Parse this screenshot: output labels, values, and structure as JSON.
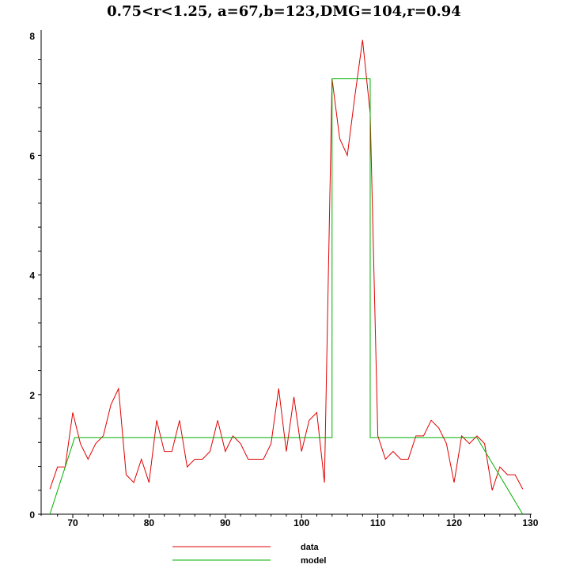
{
  "chart_data": {
    "type": "line",
    "title": "0.75<r<1.25, a=67,b=123,DMG=104,r=0.94",
    "xlabel": "",
    "ylabel": "",
    "xlim": [
      66,
      130
    ],
    "ylim": [
      0,
      8.1
    ],
    "xticks": [
      70,
      80,
      90,
      100,
      110,
      120,
      130
    ],
    "yticks": [
      0,
      2,
      4,
      6,
      8
    ],
    "grid": false,
    "legend_position": "bottom",
    "series": [
      {
        "name": "data",
        "color": "#e00000",
        "x": [
          67,
          68,
          69,
          70,
          71,
          72,
          73,
          74,
          75,
          76,
          77,
          78,
          79,
          80,
          81,
          82,
          83,
          84,
          85,
          86,
          87,
          88,
          89,
          90,
          91,
          92,
          93,
          94,
          95,
          96,
          97,
          98,
          99,
          100,
          101,
          102,
          103,
          104,
          105,
          106,
          107,
          108,
          109,
          110,
          111,
          112,
          113,
          114,
          115,
          116,
          117,
          118,
          119,
          120,
          121,
          122,
          123,
          124,
          125,
          126,
          127,
          128,
          129
        ],
        "y": [
          0.42,
          0.79,
          0.79,
          1.7,
          1.18,
          0.92,
          1.18,
          1.31,
          1.83,
          2.1,
          0.66,
          0.53,
          0.92,
          0.53,
          1.57,
          1.05,
          1.05,
          1.57,
          0.79,
          0.92,
          0.92,
          1.05,
          1.57,
          1.05,
          1.31,
          1.18,
          0.92,
          0.92,
          0.92,
          1.18,
          2.1,
          1.05,
          1.96,
          1.05,
          1.57,
          1.7,
          0.53,
          7.28,
          6.28,
          6.0,
          7.0,
          7.93,
          6.7,
          1.31,
          0.92,
          1.05,
          0.92,
          0.92,
          1.31,
          1.31,
          1.57,
          1.44,
          1.18,
          0.53,
          1.31,
          1.18,
          1.31,
          1.18,
          0.4,
          0.79,
          0.66,
          0.66,
          0.42
        ]
      },
      {
        "name": "model",
        "color": "#00b000",
        "x": [
          67,
          70.25,
          104,
          104,
          109,
          109,
          123,
          129
        ],
        "y": [
          0,
          1.28,
          1.28,
          7.28,
          7.28,
          1.28,
          1.28,
          0
        ]
      }
    ]
  }
}
